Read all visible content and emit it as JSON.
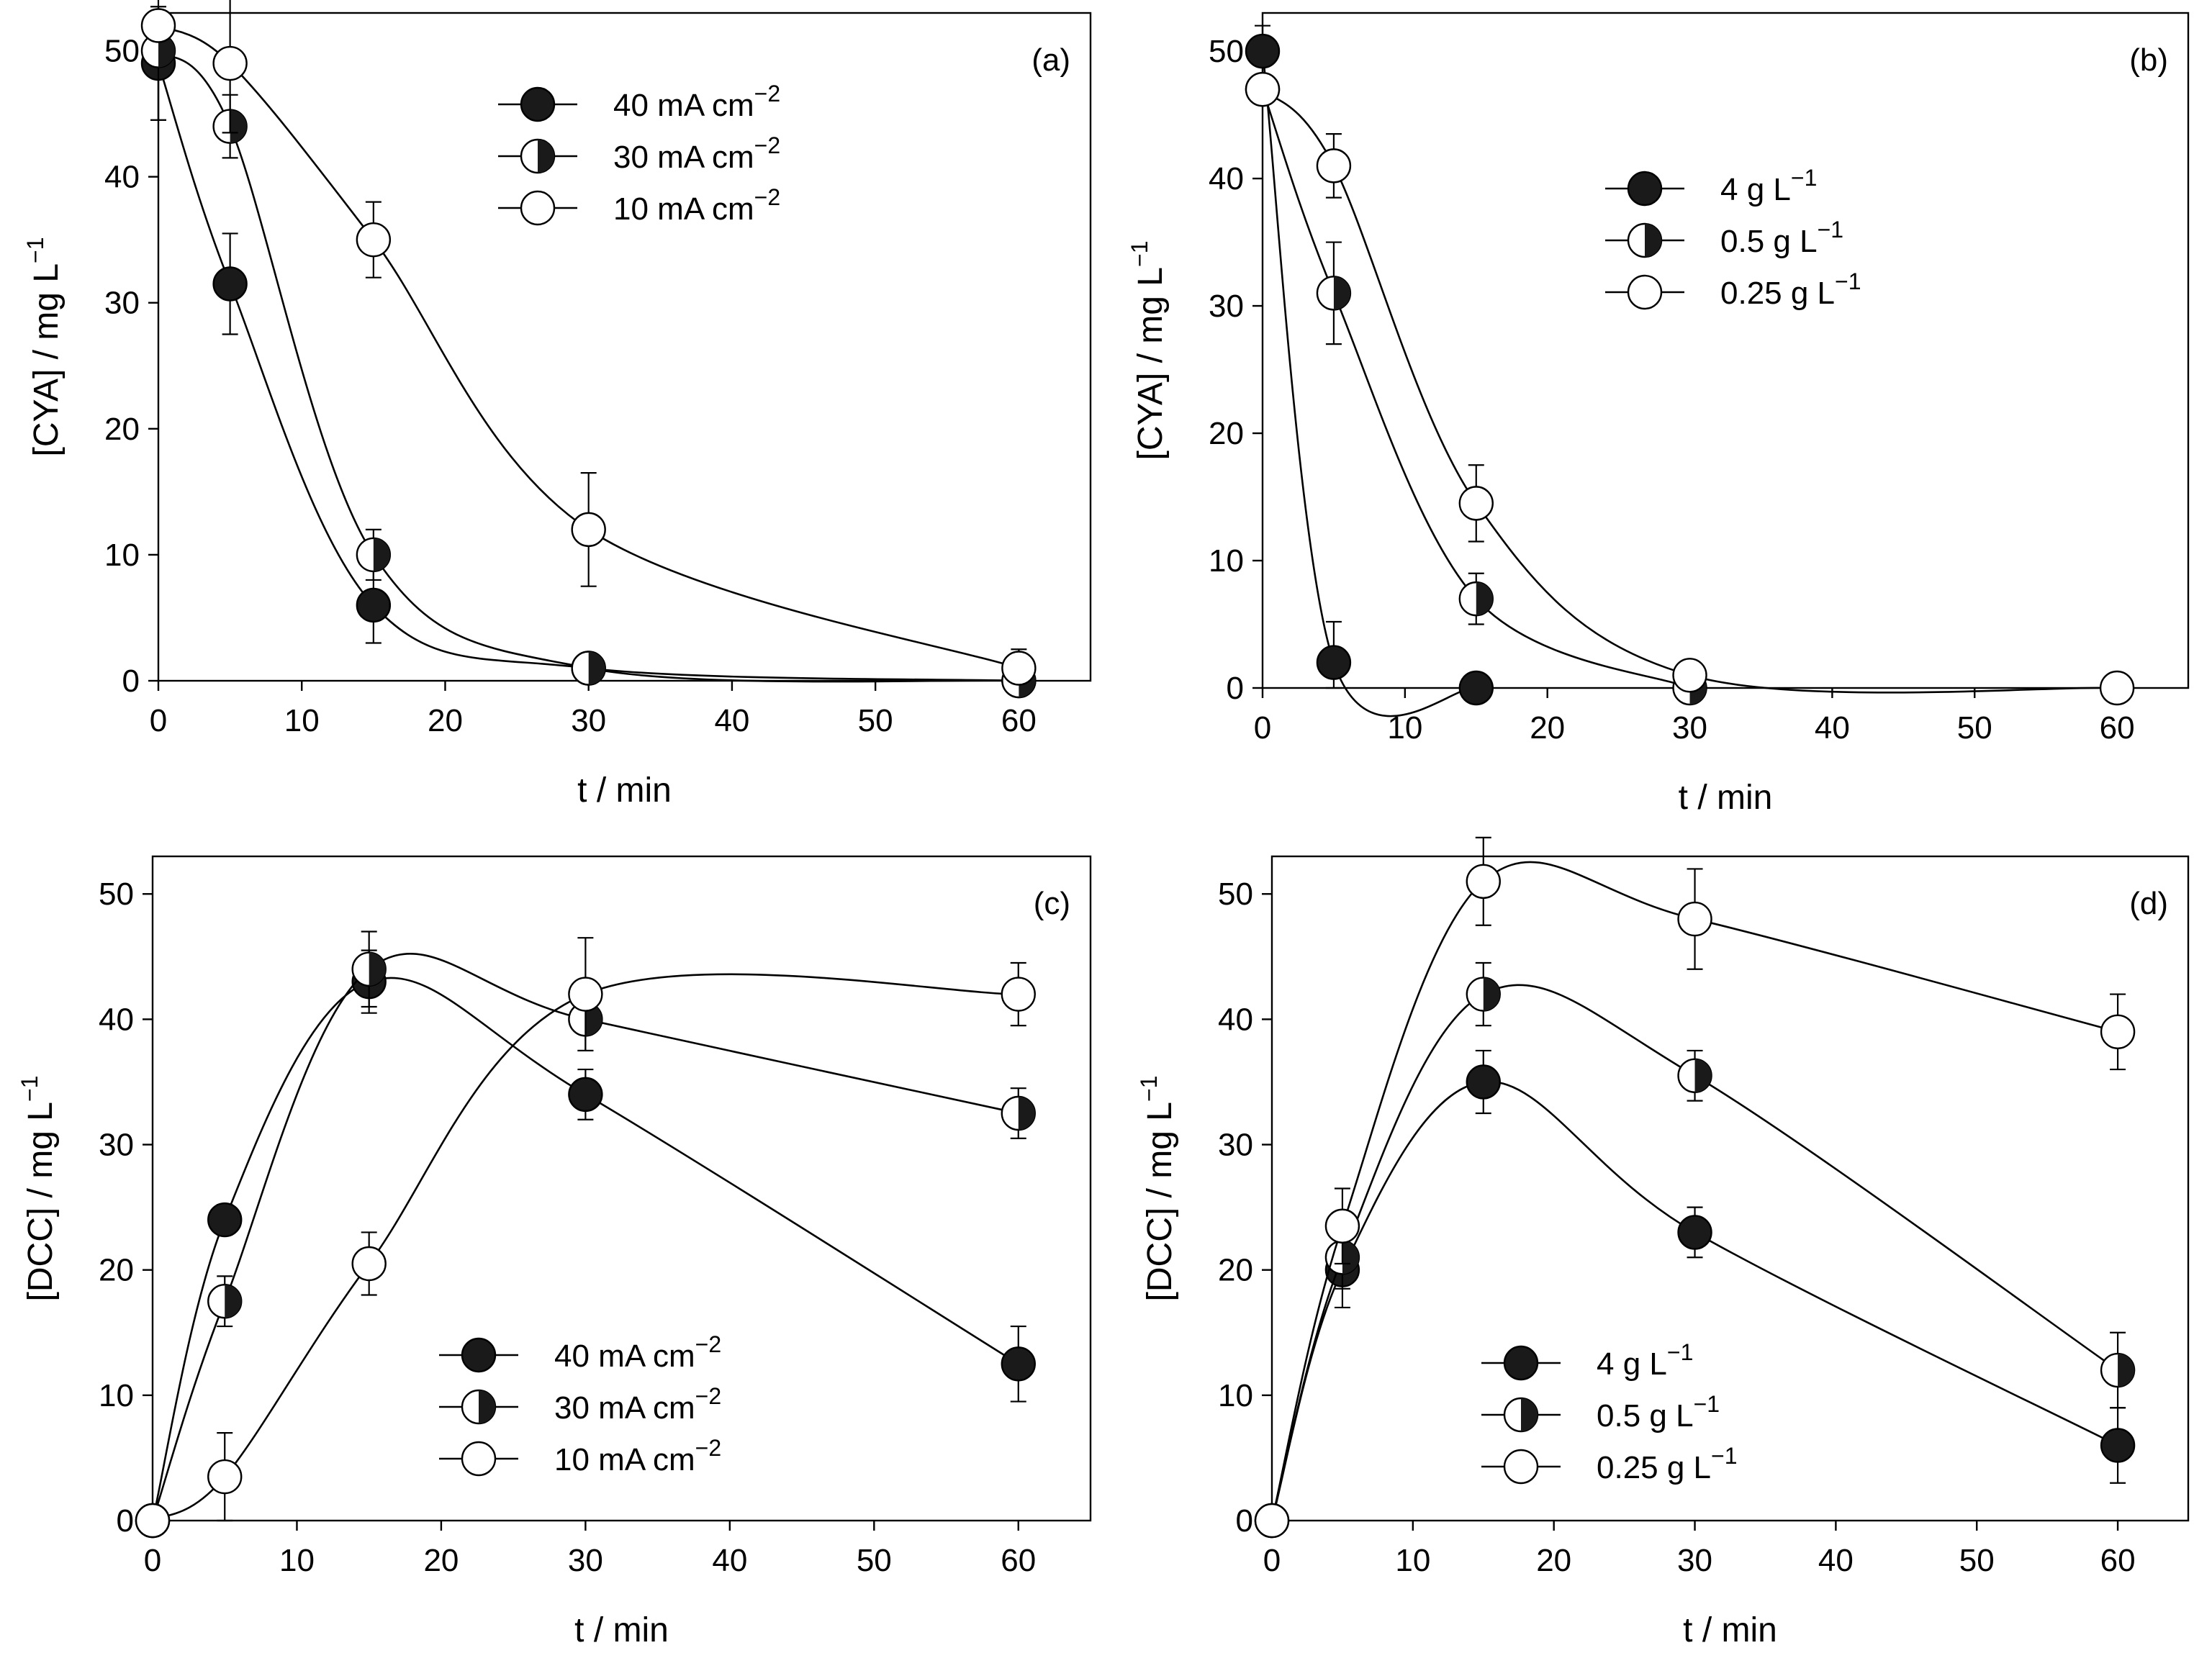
{
  "chart_data": [
    {
      "type": "line",
      "panel_label": "(a)",
      "xlabel": "t / min",
      "ylabel": "[CYA] / mg L",
      "ylabel_sup": "−1",
      "xlim": [
        0,
        65
      ],
      "ylim": [
        0,
        53
      ],
      "x_ticks": [
        0,
        10,
        20,
        30,
        40,
        50,
        60
      ],
      "y_ticks": [
        0,
        10,
        20,
        30,
        40,
        50
      ],
      "grid": false,
      "legend_position": "top-center",
      "series": [
        {
          "name": "40 mA cm",
          "name_sup": "−2",
          "marker": "filled",
          "x": [
            0,
            5,
            15,
            30,
            60
          ],
          "y": [
            49,
            31.5,
            6,
            1,
            0
          ],
          "err": [
            4.5,
            4,
            3,
            0.5,
            0.3
          ]
        },
        {
          "name": "30 mA cm",
          "name_sup": "−2",
          "marker": "half",
          "x": [
            0,
            5,
            15,
            30,
            60
          ],
          "y": [
            50,
            44,
            10,
            1,
            0
          ],
          "err": [
            5.5,
            2.5,
            2,
            0.5,
            0.3
          ]
        },
        {
          "name": "10 mA cm",
          "name_sup": "−2",
          "marker": "open",
          "x": [
            0,
            5,
            15,
            30,
            60
          ],
          "y": [
            52,
            49,
            35,
            12,
            1
          ],
          "err": [
            1,
            5.5,
            3,
            4.5,
            1.5
          ]
        }
      ]
    },
    {
      "type": "line",
      "panel_label": "(b)",
      "xlabel": "t / min",
      "ylabel": "[CYA] / mg L",
      "ylabel_sup": "−1",
      "xlim": [
        0,
        65
      ],
      "ylim": [
        0,
        53
      ],
      "x_ticks": [
        0,
        10,
        20,
        30,
        40,
        50,
        60
      ],
      "y_ticks": [
        0,
        10,
        20,
        30,
        40,
        50
      ],
      "grid": false,
      "legend_position": "center",
      "series": [
        {
          "name": "4 g L",
          "name_sup": "−1",
          "marker": "filled",
          "x": [
            0,
            5,
            15
          ],
          "y": [
            50,
            2,
            0
          ],
          "err": [
            2,
            3.2,
            0.3
          ]
        },
        {
          "name": "0.5 g L",
          "name_sup": "−1",
          "marker": "half",
          "x": [
            0,
            5,
            15,
            30
          ],
          "y": [
            47,
            31,
            7,
            0
          ],
          "err": [
            1,
            4,
            2,
            0.5
          ]
        },
        {
          "name": "0.25 g L",
          "name_sup": "−1",
          "marker": "open",
          "x": [
            0,
            5,
            15,
            30,
            60
          ],
          "y": [
            47,
            41,
            14.5,
            1,
            0
          ],
          "err": [
            1,
            2.5,
            3,
            0.5,
            0.3
          ]
        }
      ]
    },
    {
      "type": "line",
      "panel_label": "(c)",
      "xlabel": "t / min",
      "ylabel": "[DCC] / mg L",
      "ylabel_sup": "−1",
      "xlim": [
        0,
        65
      ],
      "ylim": [
        0,
        53
      ],
      "x_ticks": [
        0,
        10,
        20,
        30,
        40,
        50,
        60
      ],
      "y_ticks": [
        0,
        10,
        20,
        30,
        40,
        50
      ],
      "grid": false,
      "legend_position": "bottom-center",
      "series": [
        {
          "name": "40 mA cm",
          "name_sup": "−2",
          "marker": "filled",
          "x": [
            0,
            5,
            15,
            30,
            60
          ],
          "y": [
            0,
            24,
            43,
            34,
            12.5
          ],
          "err": [
            0,
            1.2,
            2.5,
            2,
            3
          ]
        },
        {
          "name": "30 mA cm",
          "name_sup": "−2",
          "marker": "half",
          "x": [
            0,
            5,
            15,
            30,
            60
          ],
          "y": [
            0,
            17.5,
            44,
            40,
            32.5
          ],
          "err": [
            0,
            2,
            3,
            2.5,
            2
          ]
        },
        {
          "name": "10 mA cm",
          "name_sup": "−2",
          "marker": "open",
          "x": [
            0,
            5,
            15,
            30,
            60
          ],
          "y": [
            0,
            3.5,
            20.5,
            42,
            42
          ],
          "err": [
            0,
            3.5,
            2.5,
            4.5,
            2.5
          ]
        }
      ]
    },
    {
      "type": "line",
      "panel_label": "(d)",
      "xlabel": "t / min",
      "ylabel": "[DCC] / mg L",
      "ylabel_sup": "−1",
      "xlim": [
        0,
        65
      ],
      "ylim": [
        0,
        53
      ],
      "x_ticks": [
        0,
        10,
        20,
        30,
        40,
        50,
        60
      ],
      "y_ticks": [
        0,
        10,
        20,
        30,
        40,
        50
      ],
      "grid": false,
      "legend_position": "bottom-left",
      "series": [
        {
          "name": "4 g L",
          "name_sup": "−1",
          "marker": "filled",
          "x": [
            0,
            5,
            15,
            30,
            60
          ],
          "y": [
            0,
            20,
            35,
            23,
            6
          ],
          "err": [
            0,
            3,
            2.5,
            2,
            3
          ]
        },
        {
          "name": "0.5 g L",
          "name_sup": "−1",
          "marker": "half",
          "x": [
            0,
            5,
            15,
            30,
            60
          ],
          "y": [
            0,
            21,
            42,
            35.5,
            12
          ],
          "err": [
            0,
            2.5,
            2.5,
            2,
            3
          ]
        },
        {
          "name": "0.25 g L",
          "name_sup": "−1",
          "marker": "open",
          "x": [
            0,
            5,
            15,
            30,
            60
          ],
          "y": [
            0,
            23.5,
            51,
            48,
            39
          ],
          "err": [
            0,
            3,
            3.5,
            4,
            3
          ]
        }
      ]
    }
  ]
}
